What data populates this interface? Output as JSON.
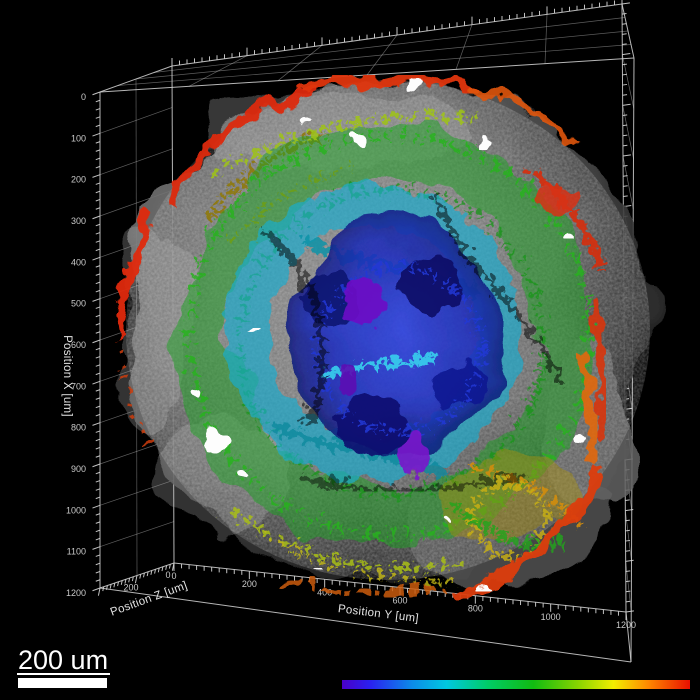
{
  "window": {
    "background": "#000000"
  },
  "chart_data": {
    "type": "3d_volume_rendering",
    "title": "",
    "description": "3D microscopy volume rendering of a roughly spherical tissue specimen. Outer shell is translucent grey with red/orange superficial vessels; interior vessel network is depth-coded from purple/blue (deep) through cyan and green to yellow, orange and red (superficial). Perspective wireframe axis box with tick marks on all visible edges.",
    "axes": {
      "x": {
        "label": "Position X [um]",
        "min": 0,
        "max": 1200,
        "major_tick_step": 100,
        "minor_tick_step": 20,
        "tick_labels": [
          "0",
          "100",
          "200",
          "300",
          "400",
          "500",
          "600",
          "700",
          "800",
          "900",
          "1000",
          "1100",
          "1200"
        ]
      },
      "y": {
        "label": "Position Y [um]",
        "min": 0,
        "max": 1200,
        "major_tick_step": 200,
        "minor_tick_step": 20,
        "tick_labels": [
          "0",
          "200",
          "400",
          "600",
          "800",
          "1000",
          "1200"
        ]
      },
      "z": {
        "label": "Position Z [um]",
        "min": 0,
        "max": 400,
        "major_tick_step": 200,
        "minor_tick_step": 20,
        "tick_labels": [
          "0",
          "200"
        ]
      }
    },
    "grid": true,
    "background": "#000000",
    "colormap": {
      "name": "rainbow",
      "encodes": "depth",
      "orientation": "horizontal",
      "stops": [
        {
          "pos": 0.0,
          "color": "#4a00c8"
        },
        {
          "pos": 0.08,
          "color": "#2a20f0"
        },
        {
          "pos": 0.2,
          "color": "#0c8ae8"
        },
        {
          "pos": 0.3,
          "color": "#00c8e0"
        },
        {
          "pos": 0.42,
          "color": "#00cc66"
        },
        {
          "pos": 0.55,
          "color": "#11bb11"
        },
        {
          "pos": 0.68,
          "color": "#8ad400"
        },
        {
          "pos": 0.78,
          "color": "#f2ee00"
        },
        {
          "pos": 0.88,
          "color": "#ff8800"
        },
        {
          "pos": 1.0,
          "color": "#e81000"
        }
      ]
    }
  },
  "scale_bar": {
    "label": "200 um"
  },
  "colors": {
    "axis_line": "#d6d6d6",
    "grid_line": "#cfcfcf",
    "tick_label": "#c9c9c9",
    "axis_label": "#e4e4e4",
    "scale_bar": "#ffffff"
  }
}
